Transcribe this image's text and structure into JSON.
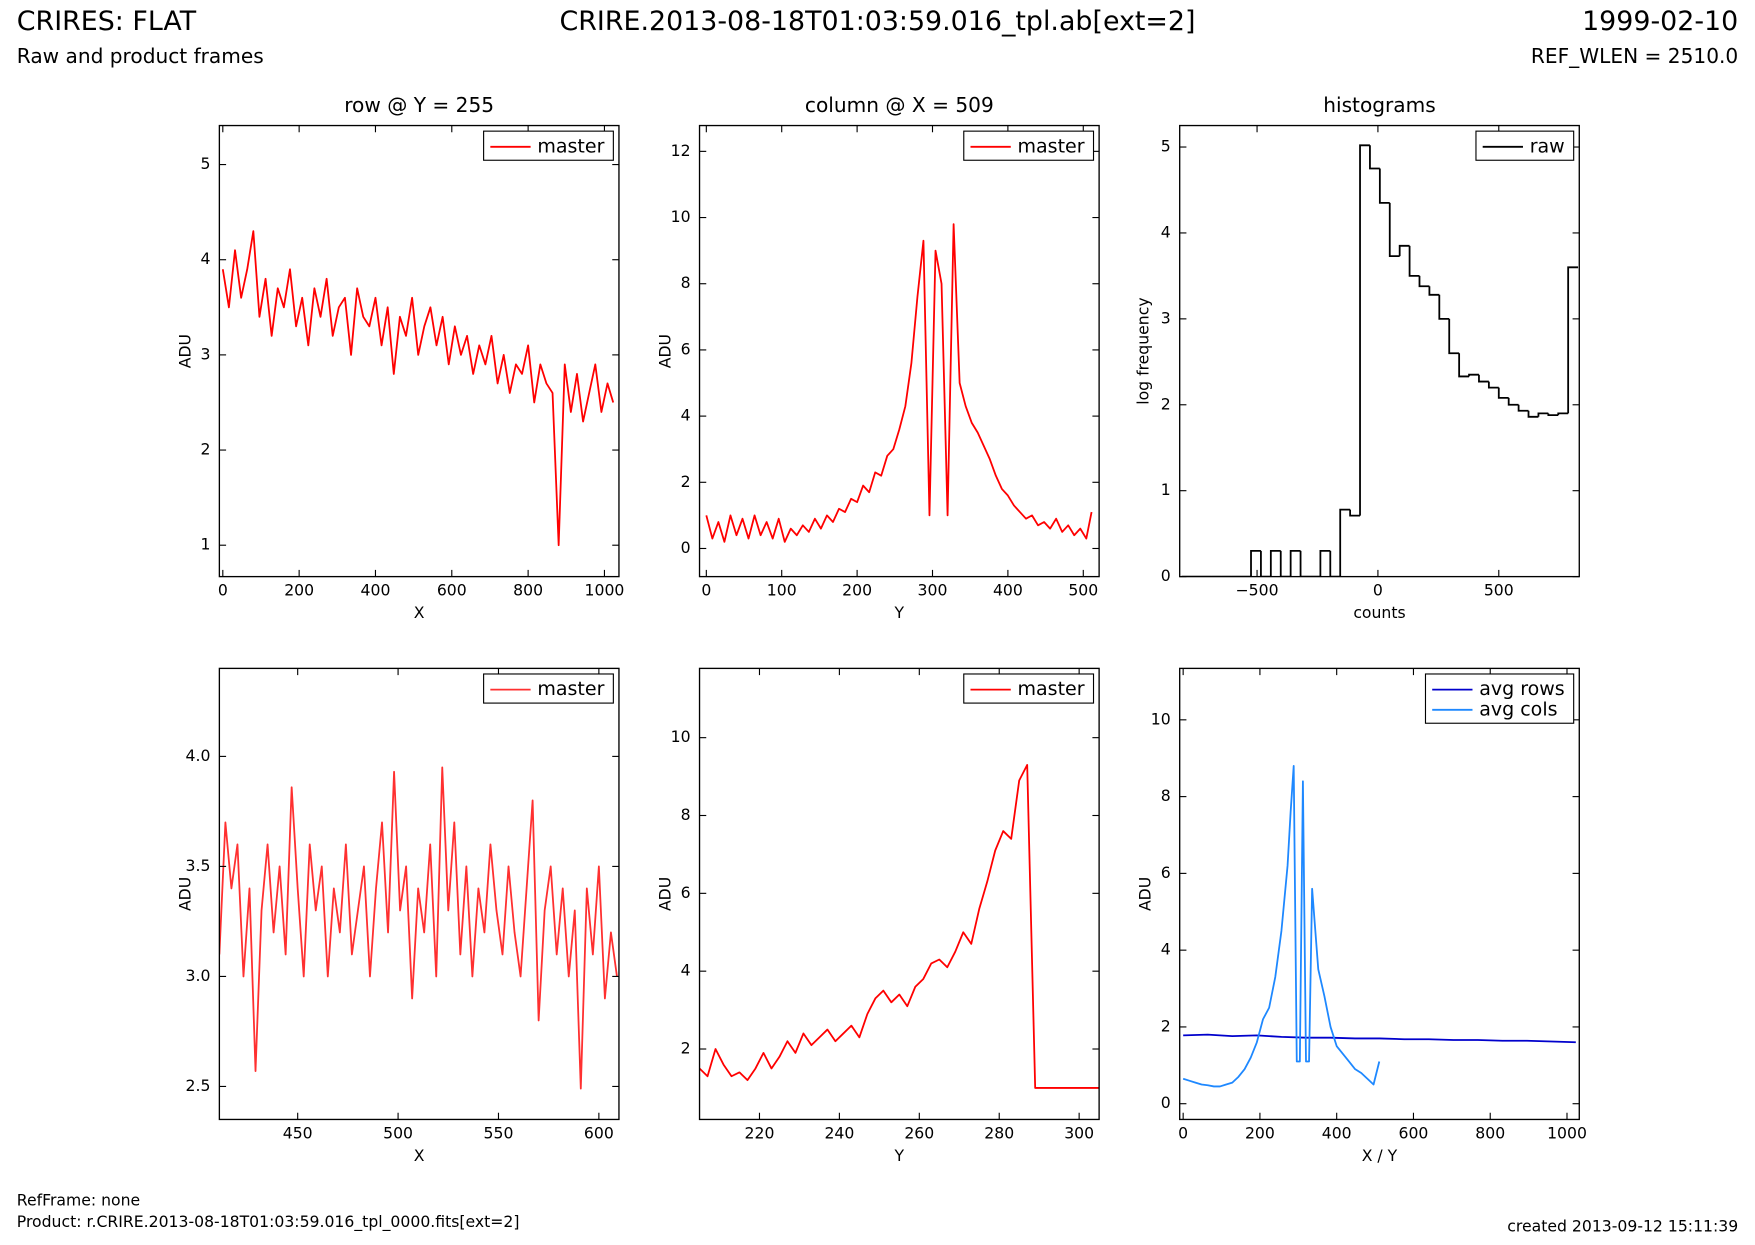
{
  "header": {
    "title": "CRIRES: FLAT",
    "subtitle": "Raw and product frames",
    "file": "CRIRE.2013-08-18T01:03:59.016_tpl.ab[ext=2]",
    "date": "1999-02-10",
    "ref_wlen": "REF_WLEN = 2510.0"
  },
  "footer": {
    "refframe": "RefFrame: none",
    "product": "Product: r.CRIRE.2013-08-18T01:03:59.016_tpl_0000.fits[ext=2]",
    "created": "created 2013-09-12 15:11:39"
  },
  "chart_data": [
    {
      "type": "line",
      "title": "row @ Y = 255",
      "x_label": "X",
      "y_label": "ADU",
      "xlim": [
        -9,
        1038
      ],
      "ylim": [
        0.67,
        5.41
      ],
      "xticks": [
        0,
        200,
        400,
        600,
        800,
        1000
      ],
      "yticks": [
        1,
        2,
        3,
        4,
        5
      ],
      "legend": "upper right",
      "series": [
        {
          "name": "master",
          "color": "#ff0000",
          "x": [
            0,
            16,
            32,
            48,
            64,
            80,
            96,
            112,
            128,
            144,
            160,
            176,
            192,
            208,
            224,
            240,
            256,
            272,
            288,
            304,
            320,
            336,
            352,
            368,
            384,
            400,
            416,
            432,
            448,
            464,
            480,
            496,
            512,
            528,
            544,
            560,
            576,
            592,
            608,
            624,
            640,
            656,
            672,
            688,
            704,
            720,
            736,
            752,
            768,
            784,
            800,
            816,
            832,
            848,
            864,
            880,
            896,
            912,
            928,
            944,
            960,
            976,
            992,
            1008,
            1023
          ],
          "values": [
            3.9,
            3.5,
            4.1,
            3.6,
            3.9,
            4.3,
            3.4,
            3.8,
            3.2,
            3.7,
            3.5,
            3.9,
            3.3,
            3.6,
            3.1,
            3.7,
            3.4,
            3.8,
            3.2,
            3.5,
            3.6,
            3.0,
            3.7,
            3.4,
            3.3,
            3.6,
            3.1,
            3.5,
            2.8,
            3.4,
            3.2,
            3.6,
            3.0,
            3.3,
            3.5,
            3.1,
            3.4,
            2.9,
            3.3,
            3.0,
            3.2,
            2.8,
            3.1,
            2.9,
            3.2,
            2.7,
            3.0,
            2.6,
            2.9,
            2.8,
            3.1,
            2.5,
            2.9,
            2.7,
            2.6,
            1.0,
            2.9,
            2.4,
            2.8,
            2.3,
            2.6,
            2.9,
            2.4,
            2.7,
            2.5
          ]
        }
      ]
    },
    {
      "type": "line",
      "title": "column @ X = 509",
      "x_label": "Y",
      "y_label": "ADU",
      "xlim": [
        -9,
        521
      ],
      "ylim": [
        -0.85,
        12.78
      ],
      "xticks": [
        0,
        100,
        200,
        300,
        400,
        500
      ],
      "yticks": [
        0,
        2,
        4,
        6,
        8,
        10,
        12
      ],
      "legend": "upper right",
      "series": [
        {
          "name": "master",
          "color": "#ff0000",
          "x": [
            0,
            8,
            16,
            24,
            32,
            40,
            48,
            56,
            64,
            72,
            80,
            88,
            96,
            104,
            112,
            120,
            128,
            136,
            144,
            152,
            160,
            168,
            176,
            184,
            192,
            200,
            208,
            216,
            224,
            232,
            240,
            248,
            256,
            264,
            272,
            280,
            288,
            296,
            304,
            312,
            320,
            328,
            336,
            344,
            352,
            360,
            368,
            376,
            384,
            392,
            400,
            408,
            416,
            424,
            432,
            440,
            448,
            456,
            464,
            472,
            480,
            488,
            496,
            504,
            511
          ],
          "values": [
            1.0,
            0.3,
            0.8,
            0.2,
            1.0,
            0.4,
            0.9,
            0.3,
            1.0,
            0.4,
            0.8,
            0.3,
            0.9,
            0.2,
            0.6,
            0.4,
            0.7,
            0.5,
            0.9,
            0.6,
            1.0,
            0.8,
            1.2,
            1.1,
            1.5,
            1.4,
            1.9,
            1.7,
            2.3,
            2.2,
            2.8,
            3.0,
            3.6,
            4.3,
            5.6,
            7.6,
            9.3,
            1.0,
            9.0,
            8.0,
            1.0,
            9.8,
            5.0,
            4.3,
            3.8,
            3.5,
            3.1,
            2.7,
            2.2,
            1.8,
            1.6,
            1.3,
            1.1,
            0.9,
            1.0,
            0.7,
            0.8,
            0.6,
            0.9,
            0.5,
            0.7,
            0.4,
            0.6,
            0.3,
            1.1
          ]
        }
      ]
    },
    {
      "type": "histogram",
      "title": "histograms",
      "x_label": "counts",
      "y_label": "log frequency",
      "xlim": [
        -820,
        833
      ],
      "ylim": [
        0,
        5.25
      ],
      "xticks": [
        {
          "value": -500,
          "label": "−500"
        },
        0,
        500
      ],
      "yticks": [
        0,
        1,
        2,
        3,
        4,
        5
      ],
      "legend": "upper right",
      "series": [
        {
          "name": "raw",
          "color": "#000000",
          "bins": [
            -812,
            -771,
            -730,
            -689,
            -648,
            -607,
            -566,
            -525,
            -484,
            -443,
            -402,
            -361,
            -320,
            -279,
            -238,
            -197,
            -156,
            -115,
            -74,
            -33,
            8,
            49,
            90,
            131,
            172,
            213,
            254,
            295,
            336,
            377,
            418,
            459,
            500,
            541,
            582,
            623,
            664,
            705,
            746,
            787,
            828
          ],
          "values": [
            0,
            0,
            0,
            0,
            0,
            0,
            0,
            0.3,
            0,
            0.3,
            0,
            0.3,
            0,
            0,
            0.3,
            0,
            0.78,
            0.71,
            5.02,
            4.75,
            4.35,
            3.73,
            3.85,
            3.5,
            3.38,
            3.28,
            3.0,
            2.6,
            2.33,
            2.35,
            2.27,
            2.2,
            2.08,
            2.0,
            1.93,
            1.86,
            1.9,
            1.88,
            1.9,
            3.6
          ]
        }
      ]
    },
    {
      "type": "line",
      "x_label": "X",
      "y_label": "ADU",
      "xlim": [
        411,
        610
      ],
      "ylim": [
        2.35,
        4.4
      ],
      "xticks": [
        450,
        500,
        550,
        600
      ],
      "yticks": [
        2.5,
        {
          "value": 3,
          "label": "3.0"
        },
        3.5,
        {
          "value": 4,
          "label": "4.0"
        }
      ],
      "legend": "upper right",
      "series": [
        {
          "name": "master",
          "color": "#ff3030",
          "x": [
            411,
            414,
            417,
            420,
            423,
            426,
            429,
            432,
            435,
            438,
            441,
            444,
            447,
            450,
            453,
            456,
            459,
            462,
            465,
            468,
            471,
            474,
            477,
            480,
            483,
            486,
            489,
            492,
            495,
            498,
            501,
            504,
            507,
            510,
            513,
            516,
            519,
            522,
            525,
            528,
            531,
            534,
            537,
            540,
            543,
            546,
            549,
            552,
            555,
            558,
            561,
            564,
            567,
            570,
            573,
            576,
            579,
            582,
            585,
            588,
            591,
            594,
            597,
            600,
            603,
            606,
            609
          ],
          "values": [
            3.1,
            3.7,
            3.4,
            3.6,
            3.0,
            3.4,
            2.57,
            3.3,
            3.6,
            3.2,
            3.5,
            3.1,
            3.86,
            3.4,
            3.0,
            3.6,
            3.3,
            3.5,
            3.0,
            3.4,
            3.2,
            3.6,
            3.1,
            3.3,
            3.5,
            3.0,
            3.4,
            3.7,
            3.2,
            3.93,
            3.3,
            3.5,
            2.9,
            3.4,
            3.2,
            3.6,
            3.0,
            3.95,
            3.3,
            3.7,
            3.1,
            3.5,
            3.0,
            3.4,
            3.2,
            3.6,
            3.3,
            3.1,
            3.5,
            3.2,
            3.0,
            3.4,
            3.8,
            2.8,
            3.3,
            3.5,
            3.1,
            3.4,
            3.0,
            3.3,
            2.49,
            3.4,
            3.1,
            3.5,
            2.9,
            3.2,
            3.0
          ]
        }
      ]
    },
    {
      "type": "line",
      "x_label": "Y",
      "y_label": "ADU",
      "xlim": [
        205,
        305
      ],
      "ylim": [
        0.19,
        11.78
      ],
      "xticks": [
        220,
        240,
        260,
        280,
        300
      ],
      "yticks": [
        2,
        4,
        6,
        8,
        10
      ],
      "legend": "upper right",
      "series": [
        {
          "name": "master",
          "color": "#ff0000",
          "x": [
            205,
            207,
            209,
            211,
            213,
            215,
            217,
            219,
            221,
            223,
            225,
            227,
            229,
            231,
            233,
            235,
            237,
            239,
            241,
            243,
            245,
            247,
            249,
            251,
            253,
            255,
            257,
            259,
            261,
            263,
            265,
            267,
            269,
            271,
            273,
            275,
            277,
            279,
            281,
            283,
            285,
            287,
            289,
            291,
            293,
            295,
            297,
            299,
            301,
            303,
            305
          ],
          "values": [
            1.5,
            1.3,
            2.0,
            1.6,
            1.3,
            1.4,
            1.2,
            1.5,
            1.9,
            1.5,
            1.8,
            2.2,
            1.9,
            2.4,
            2.1,
            2.3,
            2.5,
            2.2,
            2.4,
            2.6,
            2.3,
            2.9,
            3.3,
            3.5,
            3.2,
            3.4,
            3.1,
            3.6,
            3.8,
            4.2,
            4.3,
            4.1,
            4.5,
            5.0,
            4.7,
            5.6,
            6.3,
            7.1,
            7.6,
            7.4,
            8.9,
            9.3,
            1.0,
            1.0,
            1.0,
            1.0,
            1.0,
            1.0,
            1.0,
            1.0,
            1.0
          ]
        }
      ]
    },
    {
      "type": "line",
      "x_label": "X / Y",
      "y_label": "ADU",
      "xlim": [
        -9,
        1032
      ],
      "ylim": [
        -0.41,
        11.34
      ],
      "xticks": [
        0,
        200,
        400,
        600,
        800,
        1000
      ],
      "yticks": [
        0,
        2,
        4,
        6,
        8,
        10
      ],
      "legend": "upper right",
      "series": [
        {
          "name": "avg rows",
          "color": "#0000cc",
          "x": [
            0,
            64,
            128,
            192,
            256,
            320,
            384,
            448,
            512,
            576,
            640,
            704,
            768,
            832,
            896,
            960,
            1023
          ],
          "values": [
            1.78,
            1.8,
            1.76,
            1.78,
            1.74,
            1.72,
            1.72,
            1.7,
            1.7,
            1.68,
            1.68,
            1.66,
            1.66,
            1.64,
            1.64,
            1.62,
            1.6
          ]
        },
        {
          "name": "avg cols",
          "color": "#1e88ff",
          "x": [
            0,
            16,
            32,
            48,
            64,
            80,
            96,
            112,
            128,
            144,
            160,
            176,
            192,
            208,
            224,
            240,
            256,
            272,
            280,
            288,
            296,
            304,
            312,
            320,
            328,
            336,
            352,
            368,
            384,
            400,
            416,
            432,
            448,
            464,
            480,
            496,
            511
          ],
          "values": [
            0.65,
            0.6,
            0.55,
            0.5,
            0.48,
            0.45,
            0.45,
            0.5,
            0.55,
            0.7,
            0.9,
            1.2,
            1.6,
            2.2,
            2.5,
            3.3,
            4.5,
            6.2,
            7.6,
            8.8,
            1.1,
            1.1,
            8.4,
            1.1,
            1.1,
            5.6,
            3.5,
            2.8,
            2.0,
            1.5,
            1.3,
            1.1,
            0.9,
            0.8,
            0.65,
            0.5,
            1.1
          ]
        }
      ]
    }
  ]
}
